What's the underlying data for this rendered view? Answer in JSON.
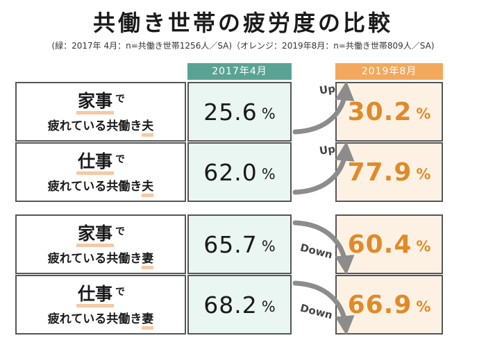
{
  "title": "共働き世帯の疲労度の比較",
  "subtitle": "(緑：2017年 4月：n=共働き世帯1256人／SA)（オレンジ：2019年8月：n=共働き世帯809人／SA)",
  "colors": {
    "header_2017": "#5aa394",
    "header_2019": "#f2a95d",
    "value_2017_bg": "#eaf6f2",
    "value_2019_bg": "#fdf1e4",
    "value_2019_text": "#e08a28",
    "arrow": "#8c8c8c",
    "label_underline": "#f5c9a6"
  },
  "chart_data": {
    "type": "table",
    "title": "共働き世帯の疲労度の比較",
    "columns": [
      "2017年4月",
      "2019年8月"
    ],
    "unit": "%",
    "rows": [
      {
        "topic": "家事",
        "particle": "で",
        "prefix": "疲れている共働き",
        "who": "夫",
        "v2017": "25.6",
        "v2019": "30.2",
        "change": "Up"
      },
      {
        "topic": "仕事",
        "particle": "で",
        "prefix": "疲れている共働き",
        "who": "夫",
        "v2017": "62.0",
        "v2019": "77.9",
        "change": "Up"
      },
      {
        "topic": "家事",
        "particle": "で",
        "prefix": "疲れている共働き",
        "who": "妻",
        "v2017": "65.7",
        "v2019": "60.4",
        "change": "Down"
      },
      {
        "topic": "仕事",
        "particle": "で",
        "prefix": "疲れている共働き",
        "who": "妻",
        "v2017": "68.2",
        "v2019": "66.9",
        "change": "Down"
      }
    ]
  }
}
